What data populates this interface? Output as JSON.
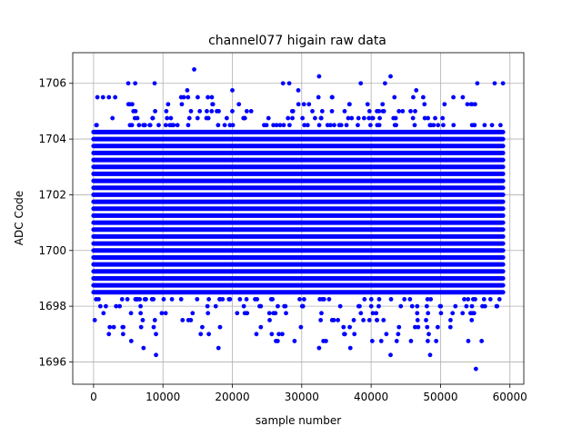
{
  "chart_data": {
    "type": "scatter",
    "title": "channel077 higain raw data",
    "xlabel": "sample number",
    "ylabel": "ADC Code",
    "xlim": [
      -3000,
      62000
    ],
    "ylim": [
      1695.2,
      1707.1
    ],
    "x_ticks": [
      0,
      10000,
      20000,
      30000,
      40000,
      50000,
      60000
    ],
    "y_ticks": [
      1696,
      1698,
      1700,
      1702,
      1704,
      1706
    ],
    "grid": true,
    "marker_color": "#0000ff",
    "x_range": [
      0,
      59000
    ],
    "band": {
      "dense_core": [
        1698.5,
        1704.3
      ],
      "sparse_low": [
        1696.75,
        1698.25
      ],
      "sparse_high": [
        1704.5,
        1705.5
      ],
      "level_step": 0.25
    },
    "outliers": [
      {
        "x": 14500,
        "y": 1706.5
      },
      {
        "x": 32500,
        "y": 1706.25
      },
      {
        "x": 42800,
        "y": 1706.25
      },
      {
        "x": 5000,
        "y": 1706.0
      },
      {
        "x": 6000,
        "y": 1706.0
      },
      {
        "x": 8800,
        "y": 1706.0
      },
      {
        "x": 27300,
        "y": 1706.0
      },
      {
        "x": 28200,
        "y": 1706.0
      },
      {
        "x": 38500,
        "y": 1706.0
      },
      {
        "x": 42000,
        "y": 1706.0
      },
      {
        "x": 55300,
        "y": 1706.0
      },
      {
        "x": 57800,
        "y": 1706.0
      },
      {
        "x": 59000,
        "y": 1706.0
      },
      {
        "x": 20000,
        "y": 1705.75
      },
      {
        "x": 13500,
        "y": 1705.75
      },
      {
        "x": 29500,
        "y": 1705.75
      },
      {
        "x": 46500,
        "y": 1705.75
      },
      {
        "x": 9000,
        "y": 1696.25
      },
      {
        "x": 42800,
        "y": 1696.25
      },
      {
        "x": 48500,
        "y": 1696.25
      },
      {
        "x": 32500,
        "y": 1696.5
      },
      {
        "x": 18000,
        "y": 1696.5
      },
      {
        "x": 7200,
        "y": 1696.5
      },
      {
        "x": 37000,
        "y": 1696.5
      },
      {
        "x": 54000,
        "y": 1696.75
      },
      {
        "x": 55100,
        "y": 1695.75
      }
    ]
  }
}
